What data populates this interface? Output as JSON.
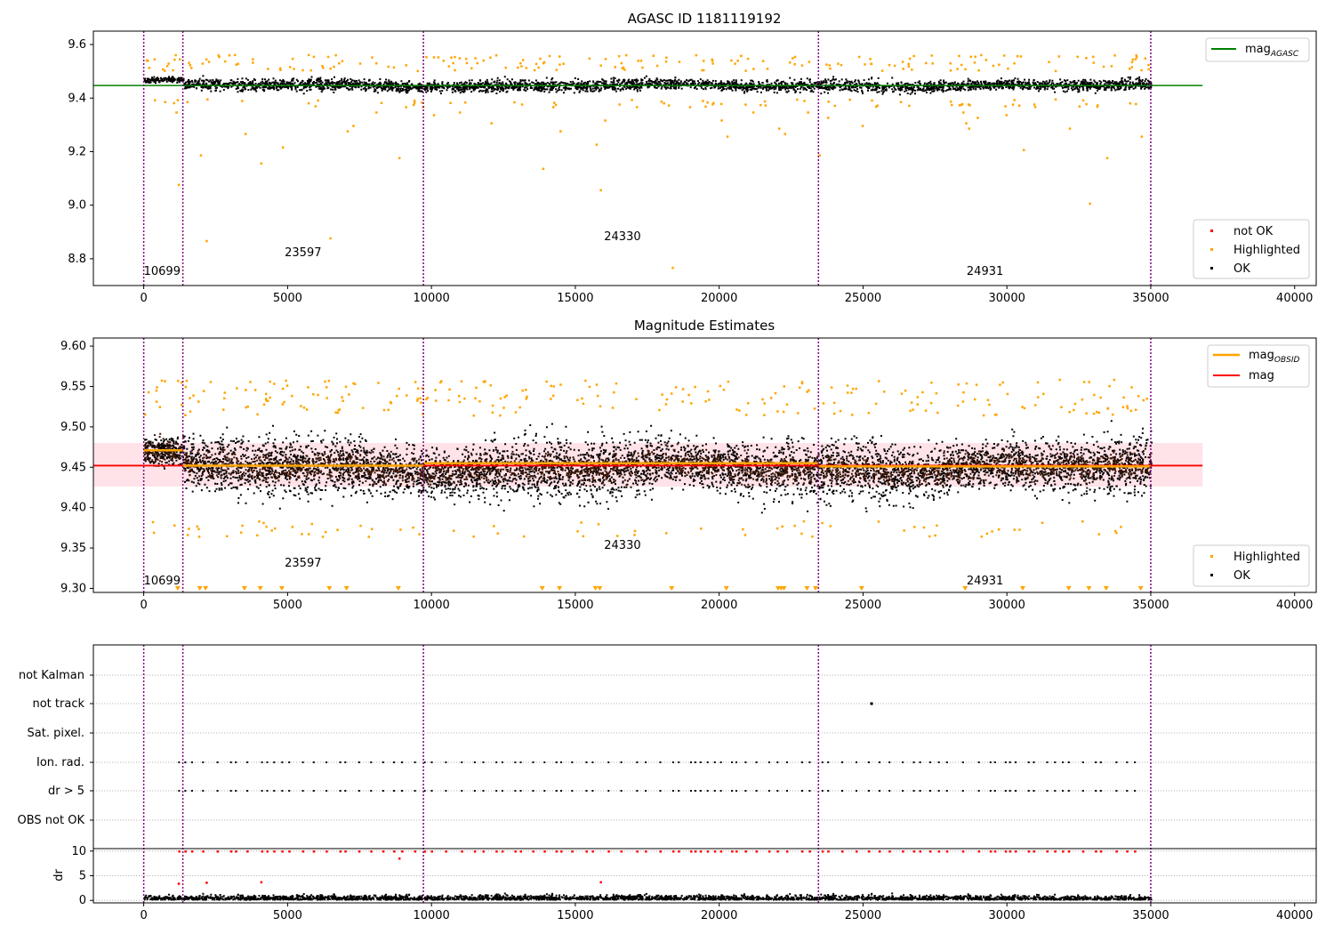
{
  "chart_data": [
    {
      "type": "scatter",
      "title": "AGASC ID 1181119192",
      "xlim": [
        -1750,
        40750
      ],
      "ylim": [
        8.7,
        9.65
      ],
      "xticks": [
        "0",
        "5000",
        "10000",
        "15000",
        "20000",
        "25000",
        "30000",
        "35000",
        "40000"
      ],
      "yticks": [
        "9.6",
        "9.4",
        "9.2",
        "9.0",
        "8.8"
      ],
      "legend_top": {
        "placement": "top-right",
        "entries": [
          {
            "label": "mag",
            "sub": "AGASC",
            "color": "#008000"
          }
        ]
      },
      "legend_bottom": {
        "placement": "lower-right",
        "entries": [
          {
            "label": "not OK",
            "color": "#ff0000"
          },
          {
            "label": "Highlighted",
            "color": "#ffa500"
          },
          {
            "label": "OK",
            "color": "#000000"
          }
        ]
      },
      "mag_agasc": 9.447,
      "obsid_boundaries": [
        0,
        1360,
        9720,
        23450,
        35000
      ],
      "obsid_labels": [
        {
          "text": "10699",
          "x": 0,
          "y": 8.74
        },
        {
          "text": "23597",
          "x": 4900,
          "y": 8.81
        },
        {
          "text": "24330",
          "x": 16000,
          "y": 8.87
        },
        {
          "text": "24931",
          "x": 28600,
          "y": 8.74
        }
      ],
      "highlighted_outliers": [
        [
          1180,
          9.08
        ],
        [
          1100,
          9.35
        ],
        [
          1950,
          9.19
        ],
        [
          2150,
          8.87
        ],
        [
          3500,
          9.27
        ],
        [
          4050,
          9.16
        ],
        [
          4800,
          9.22
        ],
        [
          6450,
          8.88
        ],
        [
          7050,
          9.28
        ],
        [
          7250,
          9.3
        ],
        [
          8050,
          9.35
        ],
        [
          8850,
          9.18
        ],
        [
          10050,
          9.34
        ],
        [
          10950,
          9.35
        ],
        [
          12050,
          9.31
        ],
        [
          13850,
          9.14
        ],
        [
          14450,
          9.28
        ],
        [
          15700,
          9.23
        ],
        [
          15850,
          9.06
        ],
        [
          16000,
          9.32
        ],
        [
          18350,
          8.77
        ],
        [
          20050,
          9.32
        ],
        [
          20250,
          9.26
        ],
        [
          21150,
          9.35
        ],
        [
          22050,
          9.29
        ],
        [
          22250,
          9.27
        ],
        [
          23050,
          9.35
        ],
        [
          23450,
          9.19
        ],
        [
          23750,
          9.33
        ],
        [
          24950,
          9.3
        ],
        [
          28450,
          9.35
        ],
        [
          28550,
          9.31
        ],
        [
          28650,
          9.29
        ],
        [
          28950,
          9.33
        ],
        [
          29950,
          9.34
        ],
        [
          30550,
          9.21
        ],
        [
          32150,
          9.29
        ],
        [
          32850,
          9.01
        ],
        [
          33450,
          9.18
        ],
        [
          34650,
          9.26
        ],
        [
          17100,
          9.37
        ],
        [
          14200,
          9.37
        ],
        [
          16500,
          9.38
        ]
      ]
    },
    {
      "type": "scatter",
      "title": "Magnitude Estimates",
      "xlim": [
        -1750,
        40750
      ],
      "ylim": [
        9.295,
        9.61
      ],
      "xticks": [
        "0",
        "5000",
        "10000",
        "15000",
        "20000",
        "25000",
        "30000",
        "35000",
        "40000"
      ],
      "yticks": [
        "9.60",
        "9.55",
        "9.50",
        "9.45",
        "9.40",
        "9.35",
        "9.30"
      ],
      "legend_top": {
        "placement": "top-right",
        "entries": [
          {
            "label": "mag",
            "sub": "OBSID",
            "color": "#ffa500"
          },
          {
            "label": "mag",
            "color": "#ff0000"
          }
        ]
      },
      "legend_bottom": {
        "placement": "lower-right",
        "entries": [
          {
            "label": "Highlighted",
            "color": "#ffa500"
          },
          {
            "label": "OK",
            "color": "#000000"
          }
        ]
      },
      "mag": 9.452,
      "mag_band": [
        9.426,
        9.48
      ],
      "mag_obsid": [
        {
          "x0": 0,
          "x1": 1360,
          "y": 9.471
        },
        {
          "x0": 1360,
          "x1": 9720,
          "y": 9.452
        },
        {
          "x0": 9720,
          "x1": 23450,
          "y": 9.455
        },
        {
          "x0": 23450,
          "x1": 35000,
          "y": 9.451
        }
      ],
      "obsid_labels": [
        {
          "text": "10699",
          "x": 0,
          "y": 9.305
        },
        {
          "text": "23597",
          "x": 4900,
          "y": 9.327
        },
        {
          "text": "24330",
          "x": 16000,
          "y": 9.349
        },
        {
          "text": "24931",
          "x": 28600,
          "y": 9.305
        }
      ],
      "clipped_low_x": [
        1180,
        1950,
        2150,
        3500,
        4050,
        4800,
        6450,
        7050,
        8850,
        13850,
        14450,
        15700,
        15850,
        18350,
        20250,
        22050,
        22150,
        22250,
        23050,
        23350,
        24950,
        28550,
        30550,
        32150,
        32850,
        33450,
        34650
      ]
    },
    {
      "type": "scatter",
      "xlim": [
        -1750,
        40750
      ],
      "xticks": [
        "0",
        "5000",
        "10000",
        "15000",
        "20000",
        "25000",
        "30000",
        "35000",
        "40000"
      ],
      "flag_labels": [
        "not Kalman",
        "not track",
        "Sat. pixel.",
        "Ion. rad.",
        "dr > 5",
        "OBS not OK"
      ],
      "dr_label": "dr",
      "dr_ylim": [
        -0.5,
        10.5
      ],
      "dr_yticks": [
        "10",
        "5",
        "0"
      ],
      "not_track_x": [
        25250
      ],
      "obsid_boundaries": [
        0,
        1360,
        9720,
        23450,
        35000
      ]
    }
  ],
  "colors": {
    "ok": "#000000",
    "highlighted": "#ffa500",
    "not_ok": "#ff0000",
    "agasc": "#008000",
    "mag": "#ff0000",
    "boundary": "#800080",
    "band": "#ffc0cb"
  }
}
